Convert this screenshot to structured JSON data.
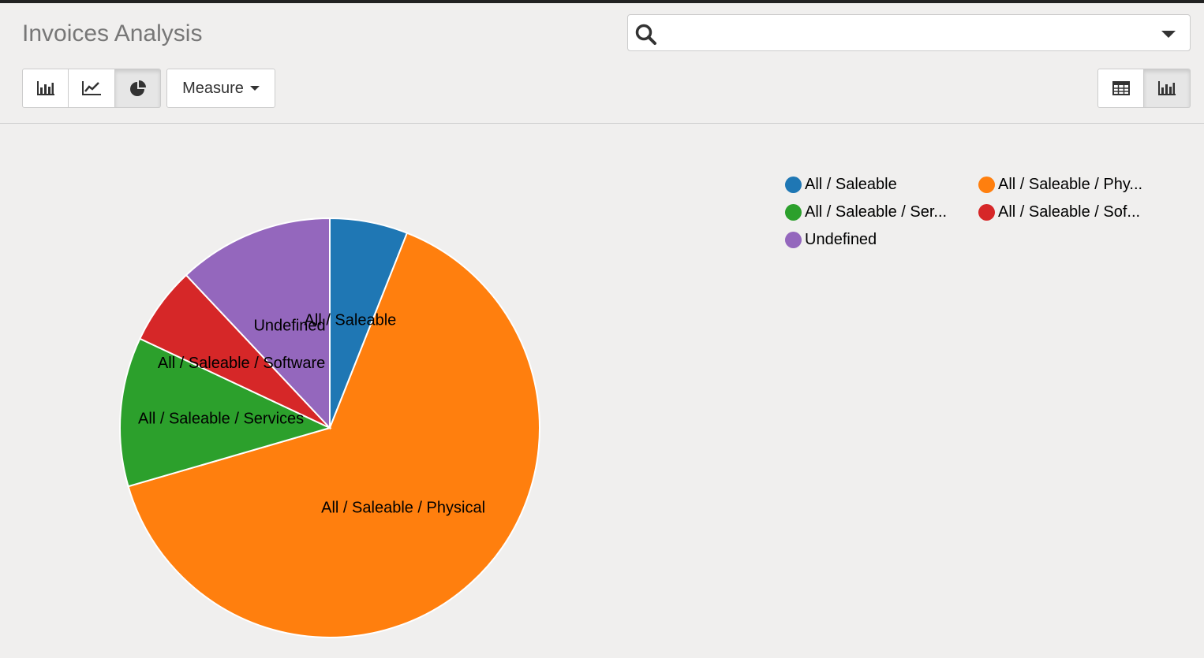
{
  "header": {
    "title": "Invoices Analysis",
    "search": {
      "value": "",
      "placeholder": ""
    }
  },
  "toolbar": {
    "chart_types": [
      {
        "name": "bar-chart-icon",
        "active": false
      },
      {
        "name": "line-chart-icon",
        "active": false
      },
      {
        "name": "pie-chart-icon",
        "active": true
      }
    ],
    "measure_label": "Measure",
    "views": [
      {
        "name": "pivot-table-icon",
        "active": false
      },
      {
        "name": "graph-view-icon",
        "active": true
      }
    ]
  },
  "chart_data": {
    "type": "pie",
    "slices": [
      {
        "label": "All / Saleable",
        "legend": "All / Saleable",
        "value": 6.0,
        "color": "#1f77b4"
      },
      {
        "label": "All / Saleable / Physical",
        "legend": "All / Saleable / Phy...",
        "value": 64.5,
        "color": "#ff7f0e"
      },
      {
        "label": "All / Saleable / Services",
        "legend": "All / Saleable / Ser...",
        "value": 11.5,
        "color": "#2ca02c"
      },
      {
        "label": "All / Saleable / Software",
        "legend": "All / Saleable / Sof...",
        "value": 6.0,
        "color": "#d62728"
      },
      {
        "label": "Undefined",
        "legend": "Undefined",
        "value": 12.0,
        "color": "#9467bd"
      }
    ],
    "legend_position": "top-right"
  }
}
